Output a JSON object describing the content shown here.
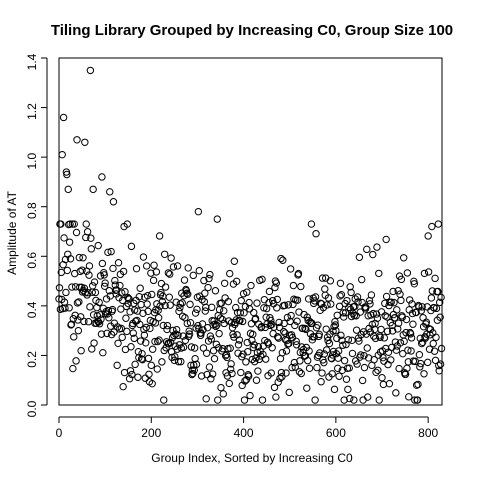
{
  "chart_data": {
    "type": "scatter",
    "title": "Tiling Library Grouped by Increasing C0, Group Size 100",
    "xlabel": "Group Index, Sorted by Increasing C0",
    "ylabel": "Amplitude of AT",
    "x_ticks": [
      "0",
      "200",
      "400",
      "600",
      "800"
    ],
    "y_ticks": [
      "0.0",
      "0.2",
      "0.4",
      "0.6",
      "0.8",
      "1.0",
      "1.2",
      "1.4"
    ],
    "xlim": [
      0,
      830
    ],
    "ylim": [
      0,
      1.4
    ],
    "grid": false,
    "legend": "none",
    "point_style": "open-circle",
    "points_count": 830,
    "source_seed": 20241202,
    "x": [],
    "y": []
  }
}
